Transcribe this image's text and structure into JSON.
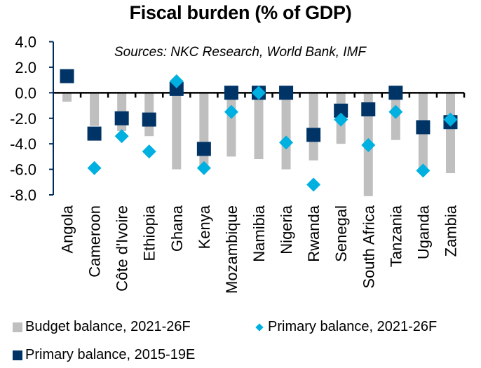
{
  "chart_data": {
    "type": "bar",
    "title": "Fiscal burden (% of GDP)",
    "annotation": "Sources: NKC Research, World Bank, IMF",
    "xlabel": "",
    "ylabel": "",
    "ylim": [
      -8.0,
      4.0
    ],
    "yticks": [
      "4.0",
      "2.0",
      "0.0",
      "-2.0",
      "-4.0",
      "-6.0",
      "-8.0"
    ],
    "ytick_values": [
      4,
      2,
      0,
      -2,
      -4,
      -6,
      -8
    ],
    "grid": false,
    "legend_position": "bottom",
    "categories": [
      "Angola",
      "Cameroon",
      "Côte d'Ivoire",
      "Ethiopia",
      "Ghana",
      "Kenya",
      "Mozambique",
      "Namibia",
      "Nigeria",
      "Rwanda",
      "Senegal",
      "South Africa",
      "Tanzania",
      "Uganda",
      "Zambia"
    ],
    "series": [
      {
        "name": "Budget balance, 2021-26F",
        "kind": "bar",
        "color": "#BFBFBF",
        "values": [
          -0.7,
          -2.6,
          -3.0,
          -3.4,
          -6.0,
          -5.9,
          -5.0,
          -5.2,
          -6.0,
          -5.3,
          -4.0,
          -8.1,
          -3.7,
          -6.0,
          -6.3
        ]
      },
      {
        "name": "Primary balance, 2021-26F",
        "kind": "diamond",
        "color": "#00B0E0",
        "values": [
          null,
          -5.9,
          -3.4,
          -4.6,
          0.9,
          -5.9,
          -1.5,
          0.0,
          -3.9,
          -7.2,
          -2.1,
          -4.1,
          -1.5,
          -6.1,
          -2.1
        ]
      },
      {
        "name": "Primary balance, 2015-19E",
        "kind": "square",
        "color": "#003366",
        "values": [
          1.3,
          -3.2,
          -2.0,
          -2.1,
          0.3,
          -4.4,
          0.0,
          0.0,
          0.0,
          -3.3,
          -1.4,
          -1.3,
          0.0,
          -2.7,
          -2.3
        ]
      }
    ]
  },
  "legend": {
    "items": [
      {
        "label": "Budget balance, 2021-26F"
      },
      {
        "label": "Primary balance, 2021-26F"
      },
      {
        "label": "Primary balance, 2015-19E"
      }
    ]
  },
  "colors": {
    "axis_y": "#002B5C",
    "axis_x": "#000000"
  }
}
